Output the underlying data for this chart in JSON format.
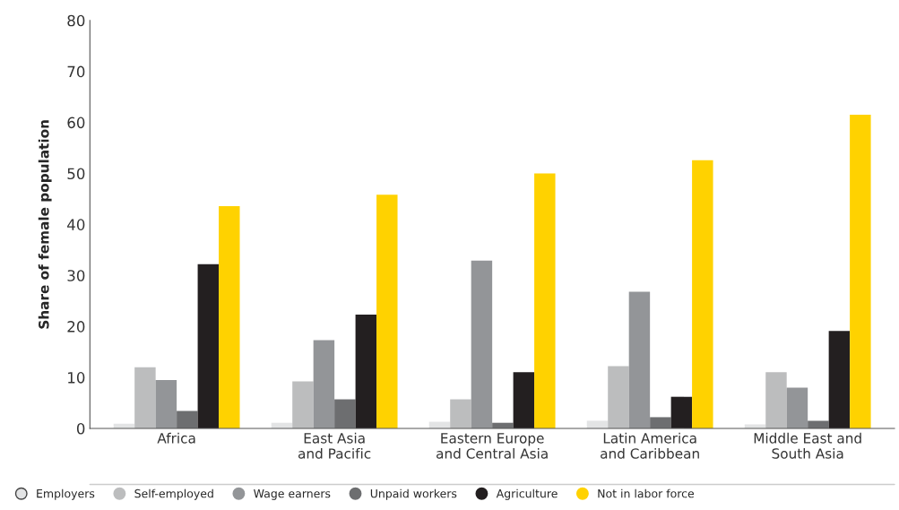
{
  "chart_data": {
    "type": "bar",
    "ylabel": "Share of female population",
    "categories": [
      "Africa",
      "East Asia\nand Pacific",
      "Eastern Europe\nand Central Asia",
      "Latin America\nand Caribbean",
      "Middle East and\nSouth Asia"
    ],
    "series": [
      {
        "name": "Employers",
        "color": "#e3e4e5",
        "values": [
          0.9,
          1.1,
          1.3,
          1.5,
          0.8
        ]
      },
      {
        "name": "Self-employed",
        "color": "#bcbdbe",
        "values": [
          12.0,
          9.2,
          5.7,
          12.2,
          11.0
        ]
      },
      {
        "name": "Wage earners",
        "color": "#939598",
        "values": [
          9.5,
          17.3,
          32.9,
          26.8,
          8.0
        ]
      },
      {
        "name": "Unpaid workers",
        "color": "#6d6e70",
        "values": [
          3.4,
          5.7,
          1.1,
          2.2,
          1.5
        ]
      },
      {
        "name": "Agriculture",
        "color": "#231f20",
        "values": [
          32.2,
          22.3,
          11.0,
          6.2,
          19.1
        ]
      },
      {
        "name": "Not in labor force",
        "color": "#ffd200",
        "values": [
          43.6,
          45.8,
          50.0,
          52.6,
          61.5
        ]
      }
    ],
    "ylim": [
      0,
      80
    ],
    "yticks": [
      0,
      10,
      20,
      30,
      40,
      50,
      60,
      70,
      80
    ],
    "grid": false,
    "legend": "bottom",
    "marker": "circle"
  }
}
